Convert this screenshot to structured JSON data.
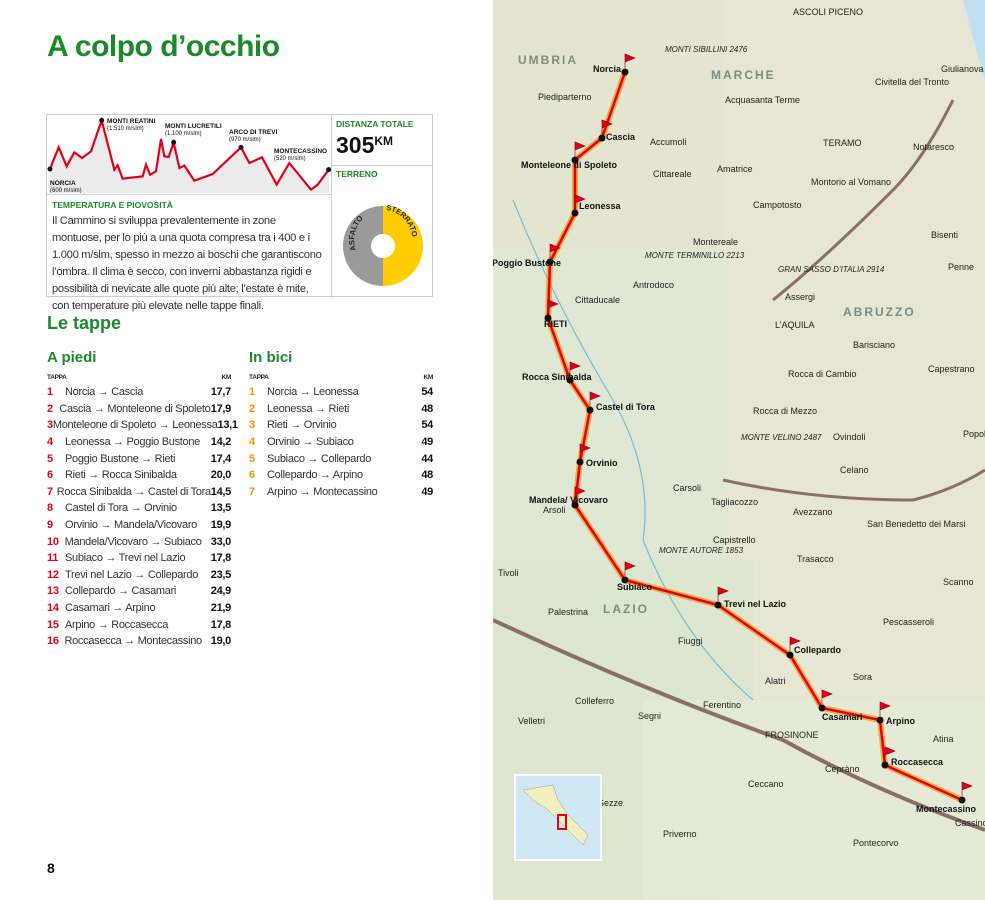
{
  "title": "A colpo d’occhio",
  "profile": {
    "peaks": [
      {
        "name": "NORCIA",
        "alt": "(600 m/slm)"
      },
      {
        "name": "MONTI REATINI",
        "alt": "(1.510 m/slm)"
      },
      {
        "name": "MONTI LUCRETILI",
        "alt": "(1.100 m/slm)"
      },
      {
        "name": "ARCO DI TREVI",
        "alt": "(970 m/slm)"
      },
      {
        "name": "MONTECASSINO",
        "alt": "(520 m/slm)"
      }
    ]
  },
  "distance": {
    "label": "DISTANZA TOTALE",
    "value": "305",
    "unit": "KM"
  },
  "terrain": {
    "label": "TERRENO",
    "asphalt": "ASFALTO",
    "dirt": "STERRATO",
    "dirt_percent": 50,
    "colors": {
      "asphalt": "#9a9a9a",
      "dirt": "#ffcc00"
    }
  },
  "climate": {
    "title": "TEMPERATURA E PIOVOSITÀ",
    "text": "Il Cammino si sviluppa prevalentemente in zone montuose, per lo più a una quota compresa tra i 400 e i 1.000 m/slm, spesso in mezzo ai boschi che garantiscono l’ombra. Il clima è secco, con inverni abbastanza rigidi e possibilità di nevicate alle quote più alte; l’estate è mite, con temperature più elevate nelle tappe finali."
  },
  "stages_title": "Le tappe",
  "walk": {
    "title": "A piedi",
    "col_stage": "TAPPA",
    "col_km": "KM",
    "color": "#e2001a",
    "rows": [
      {
        "n": "1",
        "route": "Norcia → Cascia",
        "km": "17,7"
      },
      {
        "n": "2",
        "route": "Cascia → Monteleone di Spoleto",
        "km": "17,9"
      },
      {
        "n": "3",
        "route": "Monteleone di Spoleto → Leonessa",
        "km": "13,1"
      },
      {
        "n": "4",
        "route": "Leonessa → Poggio Bustone",
        "km": "14,2"
      },
      {
        "n": "5",
        "route": "Poggio Bustone → Rieti",
        "km": "17,4"
      },
      {
        "n": "6",
        "route": "Rieti → Rocca Sinibalda",
        "km": "20,0"
      },
      {
        "n": "7",
        "route": "Rocca Sinibalda → Castel di Tora",
        "km": "14,5"
      },
      {
        "n": "8",
        "route": "Castel di Tora → Orvinio",
        "km": "13,5"
      },
      {
        "n": "9",
        "route": "Orvinio → Mandela/Vicovaro",
        "km": "19,9"
      },
      {
        "n": "10",
        "route": "Mandela/Vicovaro → Subiaco",
        "km": "33,0"
      },
      {
        "n": "11",
        "route": "Subiaco → Trevi nel Lazio",
        "km": "17,8"
      },
      {
        "n": "12",
        "route": "Trevi nel Lazio → Collepardo",
        "km": "23,5"
      },
      {
        "n": "13",
        "route": "Collepardo → Casamari",
        "km": "24,9"
      },
      {
        "n": "14",
        "route": "Casamari → Arpino",
        "km": "21,9"
      },
      {
        "n": "15",
        "route": "Arpino → Roccasecca",
        "km": "17,8"
      },
      {
        "n": "16",
        "route": "Roccasecca → Montecassino",
        "km": "19,0"
      }
    ]
  },
  "bike": {
    "title": "In bici",
    "col_stage": "TAPPA",
    "col_km": "KM",
    "color": "#f39200",
    "rows": [
      {
        "n": "1",
        "route": "Norcia → Leonessa",
        "km": "54"
      },
      {
        "n": "2",
        "route": "Leonessa → Rieti",
        "km": "48"
      },
      {
        "n": "3",
        "route": "Rieti → Orvinio",
        "km": "54"
      },
      {
        "n": "4",
        "route": "Orvinio → Subiaco",
        "km": "49"
      },
      {
        "n": "5",
        "route": "Subiaco → Collepardo",
        "km": "44"
      },
      {
        "n": "6",
        "route": "Collepardo → Arpino",
        "km": "48"
      },
      {
        "n": "7",
        "route": "Arpino → Montecassino",
        "km": "49"
      }
    ]
  },
  "page_number": "8",
  "map": {
    "regions": [
      "UMBRIA",
      "MARCHE",
      "ABRUZZO",
      "LAZIO"
    ],
    "stops": [
      "Norcia",
      "Cascia",
      "Monteleone di Spoleto",
      "Leonessa",
      "Poggio Bustone",
      "RIETI",
      "Rocca Sinibalda",
      "Castel di Tora",
      "Orvinio",
      "Mandela/ Vicovaro",
      "Subiaco",
      "Trevi nel Lazio",
      "Collepardo",
      "Casamari",
      "Arpino",
      "Roccasecca",
      "Montecassino"
    ],
    "towns": [
      "ASCOLI PICENO",
      "Piediparterno",
      "Accumoli",
      "Acquasanta Terme",
      "Civitella del Tronto",
      "Giulianova",
      "TERAMO",
      "Notaresco",
      "Amatrice",
      "Cittareale",
      "Montorio al Vomano",
      "Campotosto",
      "Montereale",
      "Bisenti",
      "Penne",
      "Antrodoco",
      "Cittaducale",
      "Assergi",
      "L’AQUILA",
      "Barisciano",
      "Capestrano",
      "Rocca di Cambio",
      "Rocca di Mezzo",
      "Ovindoli",
      "Popoli",
      "Celano",
      "Carsoli",
      "Tagliacozzo",
      "Avezzano",
      "San Benedetto dei Marsi",
      "Arsoli",
      "Capistrello",
      "Trasacco",
      "Scanno",
      "Tivoli",
      "Palestrina",
      "Fiuggi",
      "Pescasseroli",
      "Alatri",
      "Sora",
      "Colleferro",
      "Segni",
      "Ferentino",
      "Velletri",
      "FROSINONE",
      "Atina",
      "Cepràno",
      "Ceccano",
      "Sezze",
      "Priverno",
      "Cassino",
      "Pontecorvo"
    ],
    "peaks": [
      "MONTI SIBILLINI 2476",
      "MONTE TERMINILLO 2213",
      "GRAN SASSO D’ITALIA 2914",
      "MONTE VELINO 2487",
      "MONTE AUTORE 1853"
    ],
    "route_color": "#e2001a",
    "bike_color": "#f39200"
  }
}
